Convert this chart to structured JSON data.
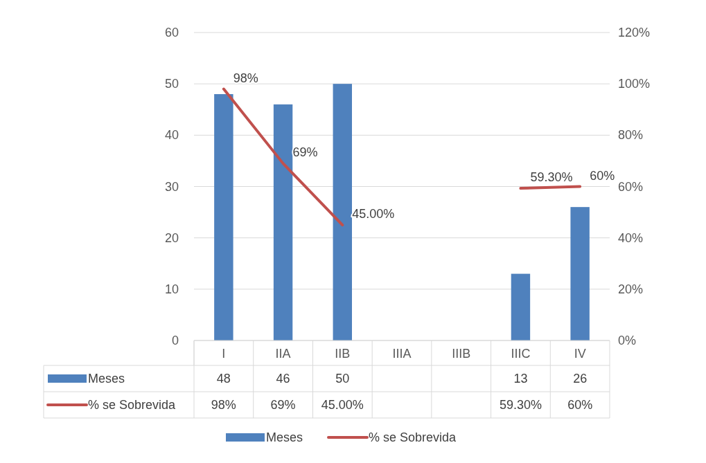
{
  "chart_data": {
    "type": "bar",
    "categories": [
      "I",
      "IIA",
      "IIB",
      "IIIA",
      "IIIB",
      "IIIC",
      "IV"
    ],
    "series": [
      {
        "name": "Meses",
        "color": "#4f81bd",
        "values": [
          48,
          46,
          50,
          null,
          null,
          13,
          26
        ],
        "value_labels": [
          "48",
          "46",
          "50",
          null,
          null,
          "13",
          "26"
        ]
      },
      {
        "name": "% se Sobrevida",
        "type": "line",
        "axis": "y2",
        "color": "#c0504d",
        "values": [
          98,
          69,
          45,
          null,
          null,
          59.3,
          60
        ],
        "value_labels": [
          "98%",
          "69%",
          "45.00%",
          null,
          null,
          "59.30%",
          "60%"
        ]
      }
    ],
    "ylim": [
      0,
      60
    ],
    "yticks": [
      0,
      10,
      20,
      30,
      40,
      50,
      60
    ],
    "y2lim": [
      0,
      120
    ],
    "y2ticks": [
      {
        "value": 0,
        "label": "0%"
      },
      {
        "value": 20,
        "label": "20%"
      },
      {
        "value": 40,
        "label": "40%"
      },
      {
        "value": 60,
        "label": "60%"
      },
      {
        "value": 80,
        "label": "80%"
      },
      {
        "value": 100,
        "label": "100%"
      },
      {
        "value": 120,
        "label": "120%"
      }
    ],
    "grid": "y",
    "legend": "bottom",
    "marker": "none",
    "line_style": "solid"
  }
}
